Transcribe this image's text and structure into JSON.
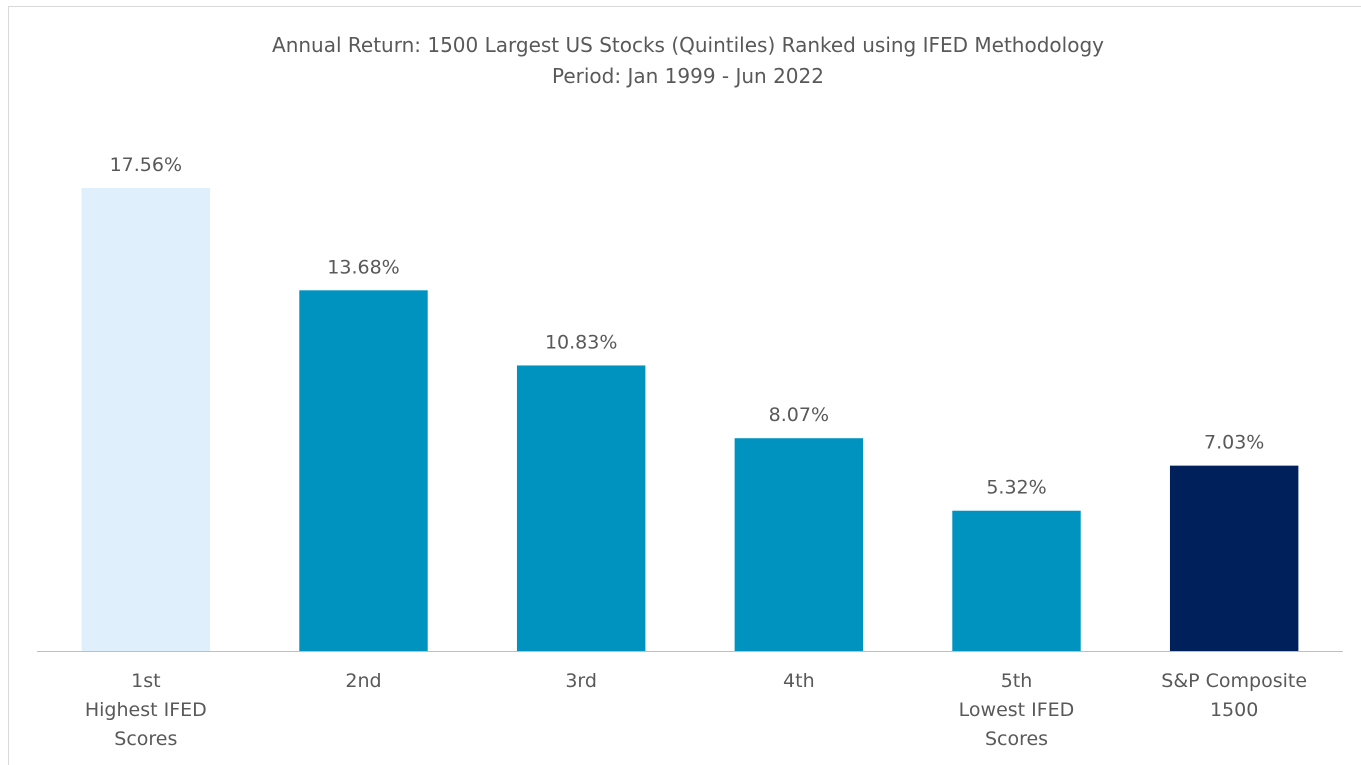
{
  "chart_data": {
    "type": "bar",
    "title": "Annual Return: 1500 Largest US Stocks (Quintiles) Ranked using IFED Methodology",
    "subtitle": "Period: Jan 1999 - Jun 2022",
    "categories": [
      "1st\nHighest IFED\nScores",
      "2nd",
      "3rd",
      "4th",
      "5th\nLowest IFED\nScores",
      "S&P Composite\n1500"
    ],
    "values": [
      17.56,
      13.68,
      10.83,
      8.07,
      5.32,
      7.03
    ],
    "value_labels": [
      "17.56%",
      "13.68%",
      "10.83%",
      "8.07%",
      "5.32%",
      "7.03%"
    ],
    "colors": [
      "#dfeffb",
      "#0093c0",
      "#0093c0",
      "#0093c0",
      "#0093c0",
      "#00205c"
    ]
  }
}
